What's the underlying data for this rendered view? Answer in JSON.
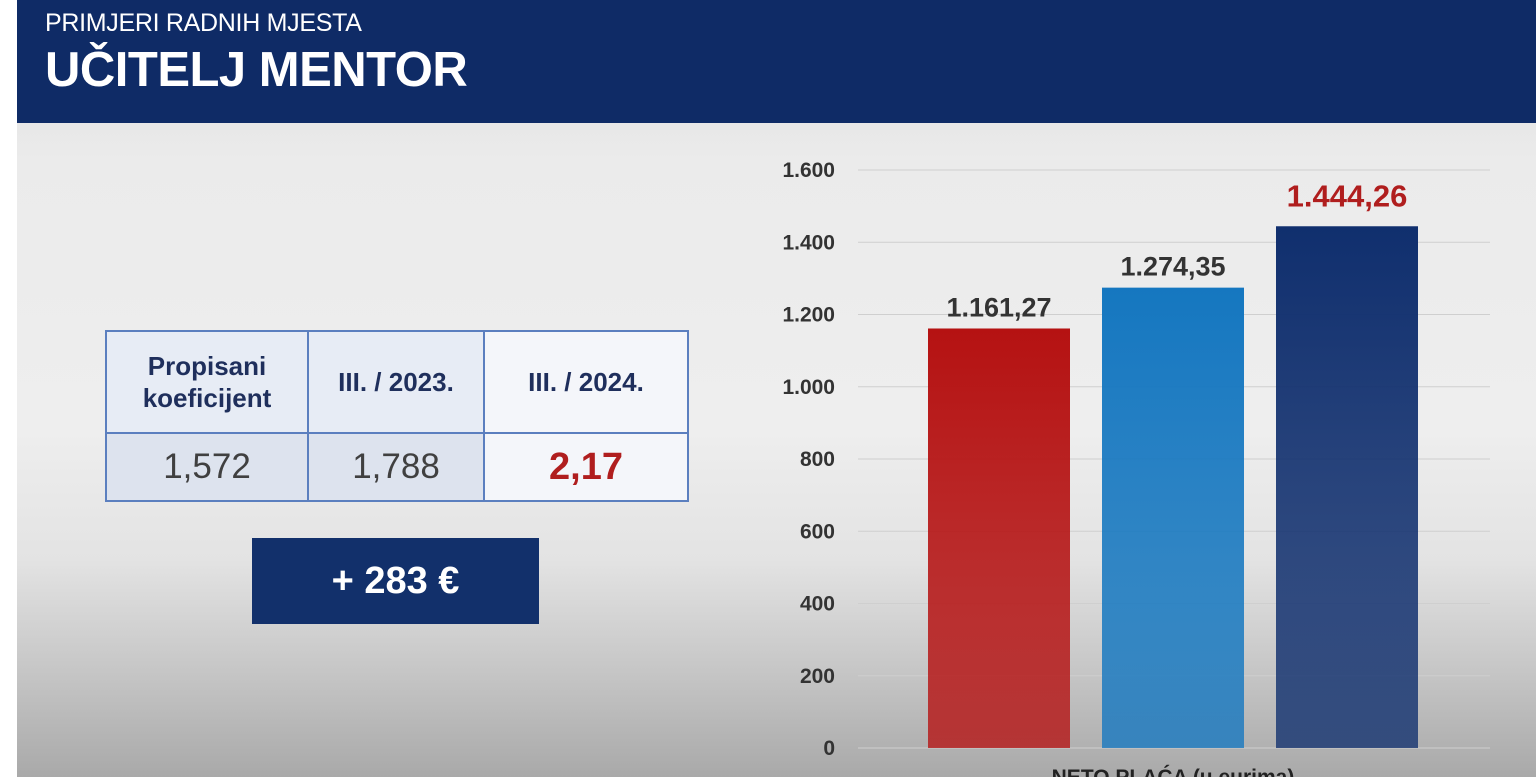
{
  "header": {
    "subtitle": "PRIMJERI RADNIH MJESTA",
    "title": "UČITELJ MENTOR"
  },
  "table": {
    "headers": [
      "Propisani koeficijent",
      "III. / 2023.",
      "III. / 2024."
    ],
    "values": [
      "1,572",
      "1,788",
      "2,17"
    ]
  },
  "difference": "+ 283 €",
  "colors": {
    "header_bg": "#0f2b66",
    "accent_red": "#b01e1e",
    "bar_red": "#b51212",
    "bar_blue": "#1577c0",
    "bar_navy": "#102f6e"
  },
  "chart_data": {
    "type": "bar",
    "categories": [
      "",
      "",
      ""
    ],
    "values": [
      1161.27,
      1274.35,
      1444.26
    ],
    "data_labels": [
      "1.161,27",
      "1.274,35",
      "1.444,26"
    ],
    "bar_colors": [
      "#b51212",
      "#1577c0",
      "#102f6e"
    ],
    "highlight_index": 2,
    "ylim": [
      0,
      1600
    ],
    "yticks": [
      0,
      200,
      400,
      600,
      800,
      1000,
      1200,
      1400,
      1600
    ],
    "ytick_labels": [
      "0",
      "200",
      "400",
      "600",
      "800",
      "1.000",
      "1.200",
      "1.400",
      "1.600"
    ],
    "xlabel": "NETO PLAĆA (u eurima)",
    "grid": true
  }
}
